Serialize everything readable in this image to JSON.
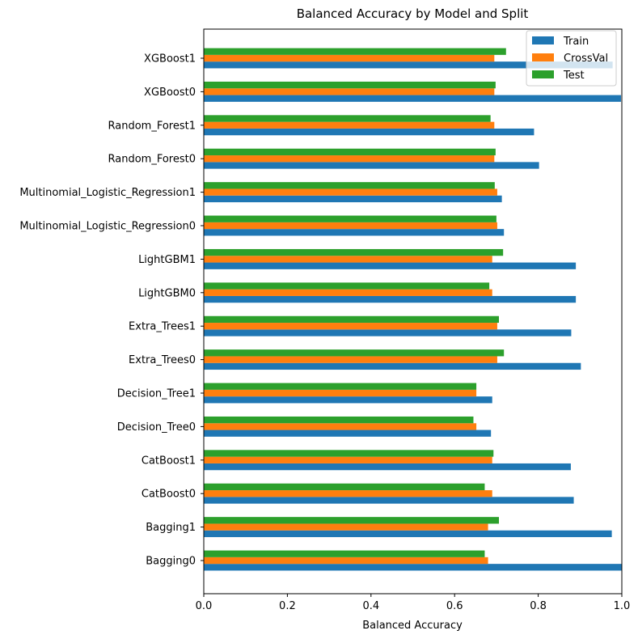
{
  "chart_data": {
    "type": "bar",
    "orientation": "horizontal",
    "title": "Balanced Accuracy by Model and Split",
    "xlabel": "Balanced Accuracy",
    "ylabel": "",
    "xlim": [
      0,
      1.0
    ],
    "xticks": [
      "0.0",
      "0.2",
      "0.4",
      "0.6",
      "0.8",
      "1.0"
    ],
    "categories": [
      "Bagging0",
      "Bagging1",
      "CatBoost0",
      "CatBoost1",
      "Decision_Tree0",
      "Decision_Tree1",
      "Extra_Trees0",
      "Extra_Trees1",
      "LightGBM0",
      "LightGBM1",
      "Multinomial_Logistic_Regression0",
      "Multinomial_Logistic_Regression1",
      "Random_Forest0",
      "Random_Forest1",
      "XGBoost0",
      "XGBoost1"
    ],
    "series": [
      {
        "name": "Train",
        "color": "#1f77b4",
        "values": [
          1.0,
          0.976,
          0.885,
          0.878,
          0.687,
          0.69,
          0.902,
          0.879,
          0.89,
          0.89,
          0.718,
          0.713,
          0.802,
          0.79,
          0.998,
          0.978
        ]
      },
      {
        "name": "CrossVal",
        "color": "#ff7f0e",
        "values": [
          0.68,
          0.68,
          0.69,
          0.69,
          0.652,
          0.652,
          0.702,
          0.702,
          0.69,
          0.69,
          0.702,
          0.702,
          0.695,
          0.695,
          0.695,
          0.695
        ]
      },
      {
        "name": "Test",
        "color": "#2ca02c",
        "values": [
          0.672,
          0.706,
          0.672,
          0.693,
          0.645,
          0.652,
          0.718,
          0.706,
          0.683,
          0.716,
          0.7,
          0.696,
          0.698,
          0.686,
          0.698,
          0.723
        ]
      }
    ],
    "legend_position": "top-right",
    "grid": false
  }
}
